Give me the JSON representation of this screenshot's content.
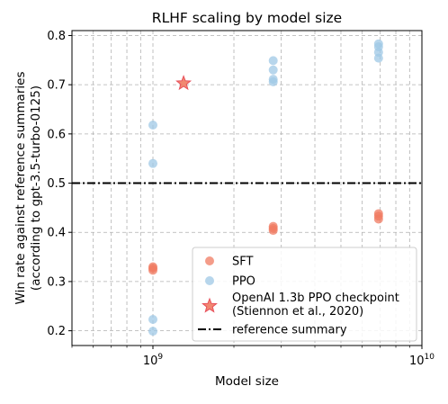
{
  "chart_data": {
    "type": "scatter",
    "title": "RLHF scaling by model size",
    "xlabel": "Model size",
    "ylabel": [
      "Win rate against reference summaries",
      "(according to gpt-3.5-turbo-0125)"
    ],
    "xscale": "log",
    "xlim": [
      500000000,
      10000000000
    ],
    "ylim": [
      0.17,
      0.81
    ],
    "xticks": [
      {
        "value": 1000000000,
        "label": "10",
        "exp": "9"
      },
      {
        "value": 10000000000,
        "label": "10",
        "exp": "10"
      }
    ],
    "yticks": [
      0.2,
      0.3,
      0.4,
      0.5,
      0.6,
      0.7,
      0.8
    ],
    "grid": true,
    "legend_position": "lower-right",
    "series": [
      {
        "name": "SFT",
        "color": "#f07b62",
        "marker": "circle",
        "points": [
          [
            1000000000,
            0.33
          ],
          [
            1000000000,
            0.327
          ],
          [
            1000000000,
            0.323
          ],
          [
            2800000000,
            0.412
          ],
          [
            2800000000,
            0.408
          ],
          [
            2800000000,
            0.404
          ],
          [
            6900000000,
            0.438
          ],
          [
            6900000000,
            0.433
          ],
          [
            6900000000,
            0.427
          ]
        ]
      },
      {
        "name": "PPO",
        "color": "#9fc8e6",
        "marker": "circle",
        "points": [
          [
            1000000000,
            0.618
          ],
          [
            1000000000,
            0.54
          ],
          [
            1000000000,
            0.223
          ],
          [
            1000000000,
            0.199
          ],
          [
            2800000000,
            0.749
          ],
          [
            2800000000,
            0.73
          ],
          [
            2800000000,
            0.711
          ],
          [
            2800000000,
            0.706
          ],
          [
            6900000000,
            0.783
          ],
          [
            6900000000,
            0.777
          ],
          [
            6900000000,
            0.766
          ],
          [
            6900000000,
            0.754
          ]
        ]
      },
      {
        "name": "OpenAI 1.3b PPO checkpoint",
        "name_line2": "(Stiennon et al., 2020)",
        "color": "#f07b62",
        "marker": "star",
        "points": [
          [
            1300000000,
            0.703
          ]
        ]
      }
    ],
    "reference_line": {
      "name": "reference summary",
      "y": 0.5,
      "style": "dash-dot",
      "color": "#000000"
    }
  }
}
